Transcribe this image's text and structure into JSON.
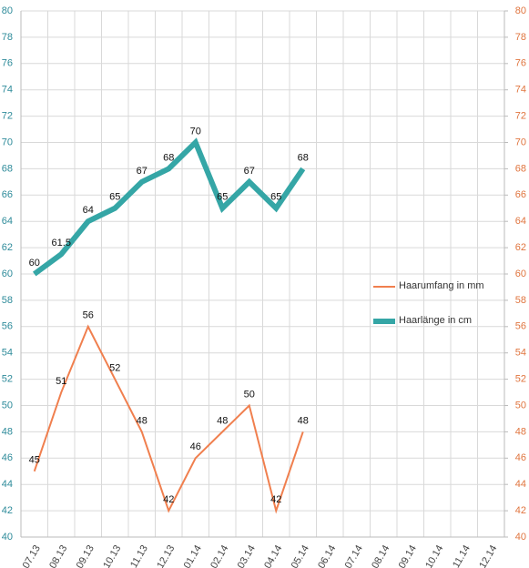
{
  "chart_data": {
    "type": "line",
    "categories": [
      "07.13",
      "08.13",
      "09.13",
      "10.13",
      "11.13",
      "12.13",
      "01.14",
      "02.14",
      "03.14",
      "04.14",
      "05.14",
      "06.14",
      "07.14",
      "08.14",
      "09.14",
      "10.14",
      "11.14",
      "12.14"
    ],
    "series": [
      {
        "name": "Haarumfang in mm",
        "color": "#f07f4e",
        "axis": "y2",
        "values": [
          45,
          51,
          56,
          52,
          48,
          42,
          46,
          48,
          50,
          42,
          48,
          null,
          null,
          null,
          null,
          null,
          null,
          null
        ]
      },
      {
        "name": "Haarlänge in cm",
        "color": "#35a6a6",
        "values": [
          60,
          61.5,
          64,
          65,
          67,
          68,
          70,
          65,
          67,
          65,
          68,
          null,
          null,
          null,
          null,
          null,
          null,
          null
        ]
      }
    ],
    "ylim": [
      40,
      80
    ],
    "yticks": [
      40,
      42,
      44,
      46,
      48,
      50,
      52,
      54,
      56,
      58,
      60,
      62,
      64,
      66,
      68,
      70,
      72,
      74,
      76,
      78,
      80
    ],
    "y2lim": [
      40,
      80
    ],
    "y2ticks": [
      40,
      42,
      44,
      46,
      48,
      50,
      52,
      54,
      56,
      58,
      60,
      62,
      64,
      66,
      68,
      70,
      72,
      74,
      76,
      78,
      80
    ],
    "grid": true,
    "legend": "right"
  }
}
